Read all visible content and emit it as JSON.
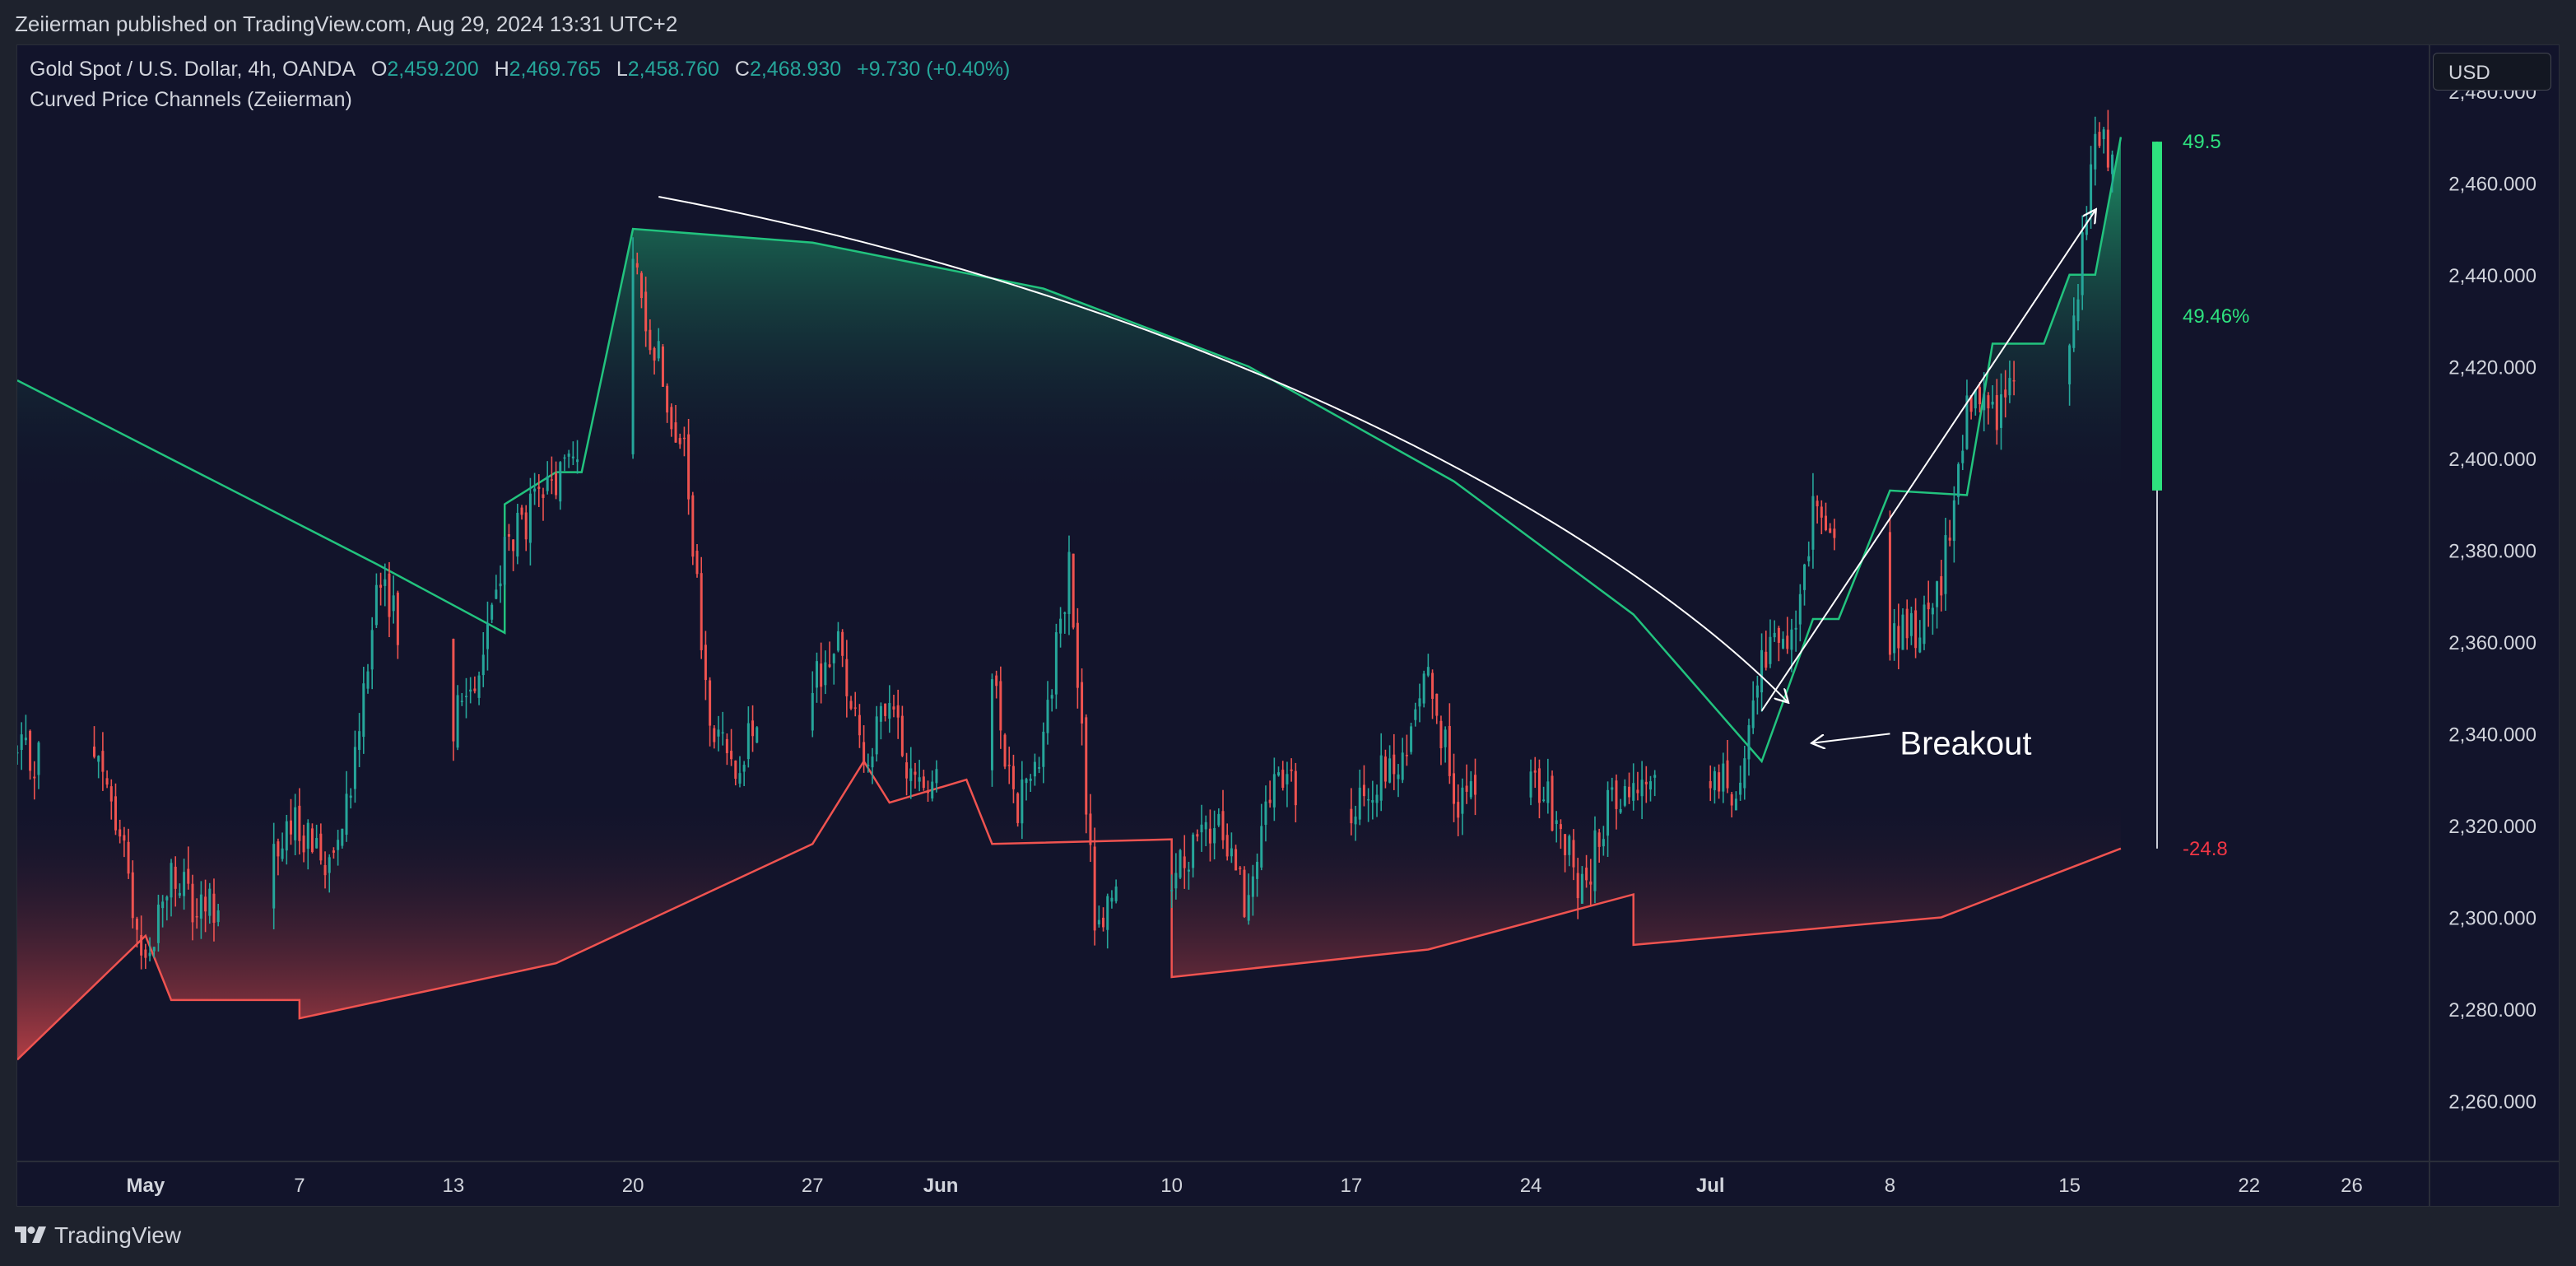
{
  "header": {
    "published": "Zeiierman published on TradingView.com, Aug 29, 2024 13:31 UTC+2"
  },
  "legend": {
    "symbol": "Gold Spot / U.S. Dollar, 4h, OANDA",
    "o_label": "O",
    "o_value": "2,459.200",
    "h_label": "H",
    "h_value": "2,469.765",
    "l_label": "L",
    "l_value": "2,458.760",
    "c_label": "C",
    "c_value": "2,468.930",
    "change": "+9.730 (+0.40%)",
    "indicator": "Curved Price Channels (Zeiierman)"
  },
  "currency_button": "USD",
  "footer": {
    "brand": "TradingView"
  },
  "colors": {
    "background": "#12142b",
    "up": "#26a69a",
    "down": "#ef5350",
    "upper_band": "#22c37e",
    "lower_band": "#ef5350",
    "bar_green": "#2ee27f",
    "label_red": "#f23645",
    "axis_text": "#d1d4dc"
  },
  "chart_data": {
    "type": "candlestick",
    "title": "Gold Spot / U.S. Dollar, 4h, OANDA",
    "ylim": [
      2247,
      2490
    ],
    "y_ticks": [
      "2,480.000",
      "2,460.000",
      "2,440.000",
      "2,420.000",
      "2,400.000",
      "2,380.000",
      "2,360.000",
      "2,340.000",
      "2,320.000",
      "2,300.000",
      "2,280.000",
      "2,260.000"
    ],
    "x_range": [
      "2024-04-26",
      "2024-07-29"
    ],
    "x_ticks": [
      {
        "label": "May",
        "date": "2024-05-01",
        "bold": true
      },
      {
        "label": "7",
        "date": "2024-05-07"
      },
      {
        "label": "13",
        "date": "2024-05-13"
      },
      {
        "label": "20",
        "date": "2024-05-20"
      },
      {
        "label": "27",
        "date": "2024-05-27"
      },
      {
        "label": "Jun",
        "date": "2024-06-01",
        "bold": true
      },
      {
        "label": "10",
        "date": "2024-06-10"
      },
      {
        "label": "17",
        "date": "2024-06-17"
      },
      {
        "label": "24",
        "date": "2024-06-24"
      },
      {
        "label": "Jul",
        "date": "2024-07-01",
        "bold": true
      },
      {
        "label": "8",
        "date": "2024-07-08"
      },
      {
        "label": "15",
        "date": "2024-07-15"
      },
      {
        "label": "22",
        "date": "2024-07-22"
      },
      {
        "label": "26",
        "date": "2024-07-26"
      }
    ],
    "price_path": [
      [
        "2024-04-26",
        2335
      ],
      [
        "2024-04-29",
        2335
      ],
      [
        "2024-04-30",
        2318
      ],
      [
        "2024-05-01",
        2290
      ],
      [
        "2024-05-02",
        2310
      ],
      [
        "2024-05-03",
        2300
      ],
      [
        "2024-05-06",
        2315
      ],
      [
        "2024-05-07",
        2320
      ],
      [
        "2024-05-08",
        2312
      ],
      [
        "2024-05-09",
        2330
      ],
      [
        "2024-05-10",
        2372
      ],
      [
        "2024-05-13",
        2343
      ],
      [
        "2024-05-14",
        2355
      ],
      [
        "2024-05-15",
        2380
      ],
      [
        "2024-05-17",
        2395
      ],
      [
        "2024-05-19",
        2415
      ],
      [
        "2024-05-20",
        2440
      ],
      [
        "2024-05-21",
        2422
      ],
      [
        "2024-05-22",
        2400
      ],
      [
        "2024-05-23",
        2340
      ],
      [
        "2024-05-24",
        2335
      ],
      [
        "2024-05-27",
        2350
      ],
      [
        "2024-05-28",
        2360
      ],
      [
        "2024-05-29",
        2335
      ],
      [
        "2024-05-30",
        2345
      ],
      [
        "2024-05-31",
        2328
      ],
      [
        "2024-06-03",
        2350
      ],
      [
        "2024-06-04",
        2325
      ],
      [
        "2024-06-05",
        2340
      ],
      [
        "2024-06-06",
        2376
      ],
      [
        "2024-06-07",
        2300
      ],
      [
        "2024-06-10",
        2310
      ],
      [
        "2024-06-11",
        2315
      ],
      [
        "2024-06-12",
        2320
      ],
      [
        "2024-06-13",
        2302
      ],
      [
        "2024-06-14",
        2330
      ],
      [
        "2024-06-17",
        2320
      ],
      [
        "2024-06-18",
        2330
      ],
      [
        "2024-06-19",
        2332
      ],
      [
        "2024-06-20",
        2358
      ],
      [
        "2024-06-21",
        2325
      ],
      [
        "2024-06-24",
        2330
      ],
      [
        "2024-06-25",
        2322
      ],
      [
        "2024-06-26",
        2305
      ],
      [
        "2024-06-27",
        2325
      ],
      [
        "2024-06-28",
        2330
      ],
      [
        "2024-07-01",
        2330
      ],
      [
        "2024-07-02",
        2328
      ],
      [
        "2024-07-03",
        2356
      ],
      [
        "2024-07-04",
        2358
      ],
      [
        "2024-07-05",
        2388
      ],
      [
        "2024-07-08",
        2360
      ],
      [
        "2024-07-09",
        2362
      ],
      [
        "2024-07-10",
        2372
      ],
      [
        "2024-07-11",
        2412
      ],
      [
        "2024-07-12",
        2410
      ],
      [
        "2024-07-15",
        2425
      ],
      [
        "2024-07-16",
        2468
      ]
    ],
    "upper_band": [
      [
        "2024-04-26",
        2417
      ],
      [
        "2024-05-10",
        2377
      ],
      [
        "2024-05-15",
        2362
      ],
      [
        "2024-05-15",
        2390
      ],
      [
        "2024-05-17",
        2397
      ],
      [
        "2024-05-18",
        2397
      ],
      [
        "2024-05-20",
        2450
      ],
      [
        "2024-05-27",
        2447
      ],
      [
        "2024-06-05",
        2437
      ],
      [
        "2024-06-13",
        2420
      ],
      [
        "2024-06-21",
        2395
      ],
      [
        "2024-06-28",
        2366
      ],
      [
        "2024-07-03",
        2334
      ],
      [
        "2024-07-05",
        2365
      ],
      [
        "2024-07-06",
        2365
      ],
      [
        "2024-07-08",
        2393
      ],
      [
        "2024-07-11",
        2392
      ],
      [
        "2024-07-12",
        2425
      ],
      [
        "2024-07-14",
        2425
      ],
      [
        "2024-07-15",
        2440
      ],
      [
        "2024-07-16",
        2440
      ],
      [
        "2024-07-17",
        2470
      ]
    ],
    "lower_band": [
      [
        "2024-04-26",
        2269
      ],
      [
        "2024-05-01",
        2296
      ],
      [
        "2024-05-02",
        2282
      ],
      [
        "2024-05-07",
        2282
      ],
      [
        "2024-05-07",
        2278
      ],
      [
        "2024-05-17",
        2290
      ],
      [
        "2024-05-27",
        2316
      ],
      [
        "2024-05-29",
        2334
      ],
      [
        "2024-05-30",
        2325
      ],
      [
        "2024-06-02",
        2330
      ],
      [
        "2024-06-03",
        2316
      ],
      [
        "2024-06-10",
        2317
      ],
      [
        "2024-06-10",
        2287
      ],
      [
        "2024-06-20",
        2293
      ],
      [
        "2024-06-28",
        2305
      ],
      [
        "2024-06-28",
        2294
      ],
      [
        "2024-07-10",
        2300
      ],
      [
        "2024-07-17",
        2315
      ]
    ],
    "annotations": [
      {
        "type": "arrow",
        "path": [
          [
            "2024-05-21",
            2457
          ],
          [
            "2024-06-11",
            2435
          ],
          [
            "2024-06-27",
            2387
          ],
          [
            "2024-07-04",
            2347
          ]
        ]
      },
      {
        "type": "arrow",
        "path": [
          [
            "2024-07-03",
            2345
          ],
          [
            "2024-07-16",
            2454
          ]
        ]
      },
      {
        "type": "arrow",
        "path": [
          [
            "2024-07-08",
            2340
          ],
          [
            "2024-07-05",
            2338
          ]
        ]
      },
      {
        "type": "text",
        "text": "Breakout",
        "at": [
          "2024-07-08",
          2338
        ]
      }
    ],
    "side_gauge": {
      "top_label": "49.5",
      "top_value": 2469,
      "percent_label": "49.46%",
      "percent_value": 2431,
      "bottom_label": "-24.8",
      "bottom_value": 2315,
      "bar_from": 2393,
      "bar_to": 2469
    }
  }
}
